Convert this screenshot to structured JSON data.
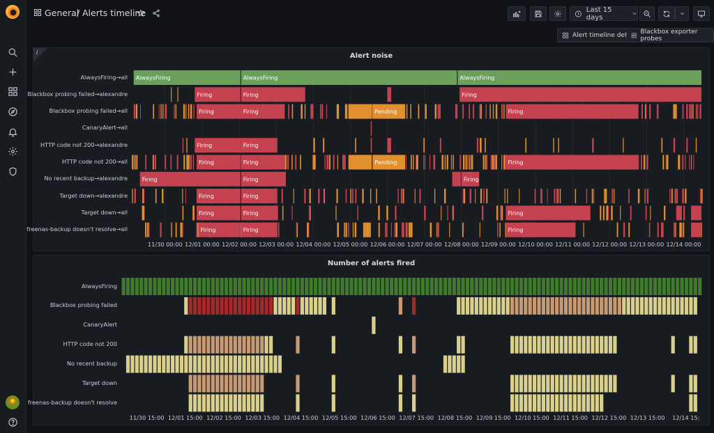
{
  "breadcrumb": {
    "folder": "General",
    "separator": "/",
    "title": "Alerts timeline"
  },
  "topbar": {
    "time_range": "Last 15 days"
  },
  "dashboard_links": [
    {
      "label": "Alert timeline detail"
    },
    {
      "label": "Blackbox exporter probes"
    }
  ],
  "colors": {
    "firing": "#c4424f",
    "pending": "#e0902e",
    "always": "#6aa05a",
    "count_green": "#3f7a2c",
    "count_red": "#a82828",
    "count_tan": "#c89a73",
    "count_yellow": "#d8d08c"
  },
  "state_timeline": {
    "title": "Alert noise",
    "info_icon": "i",
    "x_ticks": [
      "11/30 00:00",
      "12/01 00:00",
      "12/02 00:00",
      "12/03 00:00",
      "12/04 00:00",
      "12/05 00:00",
      "12/06 00:00",
      "12/07 00:00",
      "12/08 00:00",
      "12/09 00:00",
      "12/10 00:00",
      "12/11 00:00",
      "12/12 00:00",
      "12/13 00:00",
      "12/14 00:00"
    ],
    "rows": [
      {
        "label": "AlwaysFiring→all",
        "spans": [
          [
            11.65,
            14.55,
            "always",
            "AlwaysFiring"
          ],
          [
            14.55,
            20.4,
            "always",
            "AlwaysFiring"
          ],
          [
            20.4,
            27.0,
            "always",
            "AlwaysFiring"
          ]
        ],
        "noise": 0
      },
      {
        "label": "Blackbox probing failed→alexandre",
        "spans": [
          [
            13.3,
            14.55,
            "firing",
            "Firing"
          ],
          [
            14.55,
            16.3,
            "firing",
            "Firing"
          ],
          [
            18.5,
            18.62,
            "firing",
            ""
          ],
          [
            20.45,
            27.0,
            "firing",
            "Firing"
          ]
        ],
        "noise": 12
      },
      {
        "label": "Blackbox probing failed→all",
        "spans": [
          [
            13.35,
            14.55,
            "firing",
            "Firing"
          ],
          [
            14.55,
            15.75,
            "firing",
            "Firing"
          ],
          [
            17.45,
            18.1,
            "pending",
            ""
          ],
          [
            18.1,
            19.0,
            "pending",
            "Pending"
          ],
          [
            21.7,
            25.3,
            "firing",
            "Firing"
          ]
        ],
        "noise": 150
      },
      {
        "label": "CanaryAlert→all",
        "spans": [],
        "noise": 0,
        "single": 18.05
      },
      {
        "label": "HTTP code not 200→alexandre",
        "spans": [
          [
            13.3,
            14.55,
            "firing",
            "Firing"
          ],
          [
            14.55,
            15.55,
            "firing",
            "Firing"
          ],
          [
            18.5,
            18.62,
            "firing",
            ""
          ]
        ],
        "noise": 25
      },
      {
        "label": "HTTP code not 200→all",
        "spans": [
          [
            13.35,
            14.55,
            "firing",
            "Firing"
          ],
          [
            14.55,
            15.75,
            "firing",
            "Firing"
          ],
          [
            17.45,
            18.1,
            "pending",
            ""
          ],
          [
            18.1,
            19.0,
            "pending",
            "Pending"
          ],
          [
            21.7,
            25.3,
            "firing",
            "Firing"
          ]
        ],
        "noise": 150
      },
      {
        "label": "No recent backup→alexandre",
        "spans": [
          [
            11.82,
            14.55,
            "firing",
            "Firing"
          ],
          [
            14.55,
            15.78,
            "firing",
            "Firing"
          ],
          [
            20.25,
            20.5,
            "firing",
            ""
          ],
          [
            20.5,
            21.0,
            "firing",
            "Firing"
          ]
        ],
        "noise": 0
      },
      {
        "label": "Target down→alexandre",
        "spans": [
          [
            13.35,
            14.55,
            "firing",
            "Firing"
          ],
          [
            14.55,
            15.55,
            "firing",
            "Firing"
          ]
        ],
        "noise": 90
      },
      {
        "label": "Target down→all",
        "spans": [
          [
            13.35,
            14.55,
            "firing",
            "Firing"
          ],
          [
            14.55,
            15.55,
            "firing",
            "Firing"
          ],
          [
            21.7,
            24.0,
            "firing",
            "Firing"
          ],
          [
            26.3,
            26.45,
            "firing",
            ""
          ],
          [
            26.7,
            27.0,
            "firing",
            ""
          ]
        ],
        "noise": 40
      },
      {
        "label": "freenas-backup doesn't resolve→all",
        "spans": [
          [
            13.4,
            14.55,
            "firing",
            "Firing"
          ],
          [
            14.55,
            15.55,
            "firing",
            "Firing"
          ],
          [
            21.7,
            23.6,
            "firing",
            "Firing"
          ],
          [
            26.7,
            27.0,
            "firing",
            ""
          ]
        ],
        "noise": 110
      }
    ]
  },
  "alerts_fired": {
    "title": "Number of alerts fired",
    "x_ticks": [
      "11/30 15:00",
      "12/01 15:00",
      "12/02 15:00",
      "12/03 15:00",
      "12/04 15:00",
      "12/05 15:00",
      "12/06 15:00",
      "12/07 15:00",
      "12/08 15:00",
      "12/09 15:00",
      "12/10 15:00",
      "12/11 15:00",
      "12/12 15:00",
      "12/13 15:00",
      "12/14 15:"
    ],
    "rows": [
      {
        "label": "AlwaysFiring",
        "ranges": [
          [
            0,
            129,
            "count_green"
          ]
        ]
      },
      {
        "label": "Blackbox probing failed",
        "ranges": [
          [
            14,
            14,
            "count_yellow"
          ],
          [
            15,
            33,
            "count_red"
          ],
          [
            34,
            38,
            "count_yellow"
          ],
          [
            39,
            39,
            "count_red"
          ],
          [
            40,
            45,
            "count_yellow"
          ],
          [
            47,
            47,
            "count_yellow"
          ],
          [
            62,
            62,
            "count_tan"
          ],
          [
            65,
            65,
            "count_red"
          ],
          [
            75,
            86,
            "count_yellow"
          ],
          [
            87,
            111,
            "count_tan"
          ],
          [
            112,
            128,
            "count_yellow"
          ]
        ]
      },
      {
        "label": "CanaryAlert",
        "ranges": [
          [
            56,
            56,
            "count_yellow"
          ]
        ]
      },
      {
        "label": "HTTP code not 200",
        "ranges": [
          [
            14,
            14,
            "count_yellow"
          ],
          [
            15,
            31,
            "count_tan"
          ],
          [
            32,
            33,
            "count_yellow"
          ],
          [
            39,
            39,
            "count_tan"
          ],
          [
            47,
            47,
            "count_yellow"
          ],
          [
            62,
            62,
            "count_yellow"
          ],
          [
            65,
            65,
            "count_tan"
          ],
          [
            75,
            76,
            "count_yellow"
          ],
          [
            87,
            110,
            "count_yellow"
          ],
          [
            123,
            123,
            "count_yellow"
          ],
          [
            127,
            128,
            "count_yellow"
          ]
        ]
      },
      {
        "label": "No recent backup",
        "ranges": [
          [
            1,
            35,
            "count_yellow"
          ],
          [
            72,
            76,
            "count_yellow"
          ]
        ]
      },
      {
        "label": "Target down",
        "ranges": [
          [
            15,
            31,
            "count_tan"
          ],
          [
            39,
            39,
            "count_tan"
          ],
          [
            47,
            47,
            "count_yellow"
          ],
          [
            62,
            62,
            "count_yellow"
          ],
          [
            65,
            65,
            "count_tan"
          ],
          [
            87,
            110,
            "count_yellow"
          ],
          [
            123,
            123,
            "count_yellow"
          ],
          [
            127,
            128,
            "count_yellow"
          ]
        ]
      },
      {
        "label": "freenas-backup doesn't resolve",
        "ranges": [
          [
            15,
            31,
            "count_yellow"
          ],
          [
            39,
            39,
            "count_yellow"
          ],
          [
            47,
            47,
            "count_yellow"
          ],
          [
            62,
            62,
            "count_yellow"
          ],
          [
            65,
            65,
            "count_yellow"
          ],
          [
            87,
            107,
            "count_yellow"
          ],
          [
            127,
            128,
            "count_yellow"
          ]
        ]
      }
    ]
  }
}
